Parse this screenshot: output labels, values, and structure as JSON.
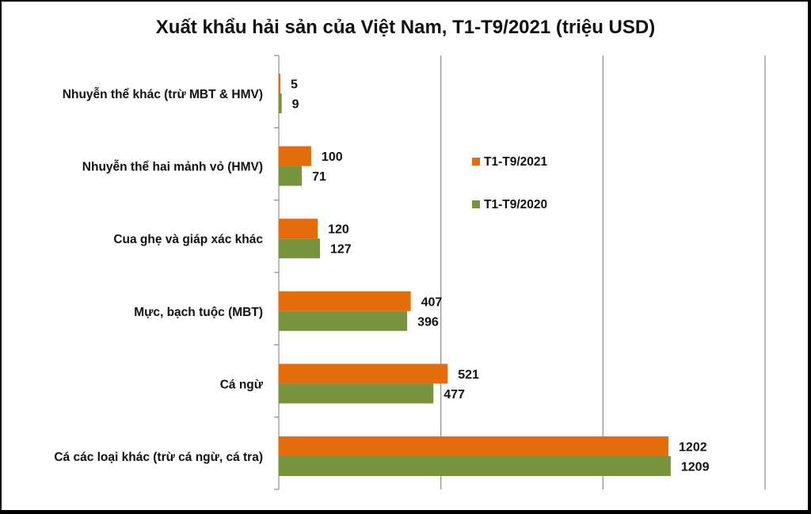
{
  "chart_data": {
    "type": "bar",
    "orientation": "horizontal",
    "title": "Xuất khẩu hải sản của Việt Nam, T1-T9/2021 (triệu USD)",
    "xlabel": "",
    "ylabel": "",
    "xlim": [
      0,
      1500
    ],
    "grid": true,
    "legend_position": "center-right",
    "categories": [
      "Nhuyễn thể khác (trừ MBT & HMV)",
      "Nhuyễn thể hai mảnh vỏ (HMV)",
      "Cua ghẹ và giáp xác khác",
      "Mực, bạch tuộc (MBT)",
      "Cá ngừ",
      "Cá các loại khác (trừ cá ngừ, cá tra)"
    ],
    "series": [
      {
        "name": "T1-T9/2021",
        "color": "#E46C0A",
        "values": [
          5,
          100,
          120,
          407,
          521,
          1202
        ]
      },
      {
        "name": "T1-T9/2020",
        "color": "#77933C",
        "values": [
          9,
          71,
          127,
          396,
          477,
          1209
        ]
      }
    ]
  }
}
